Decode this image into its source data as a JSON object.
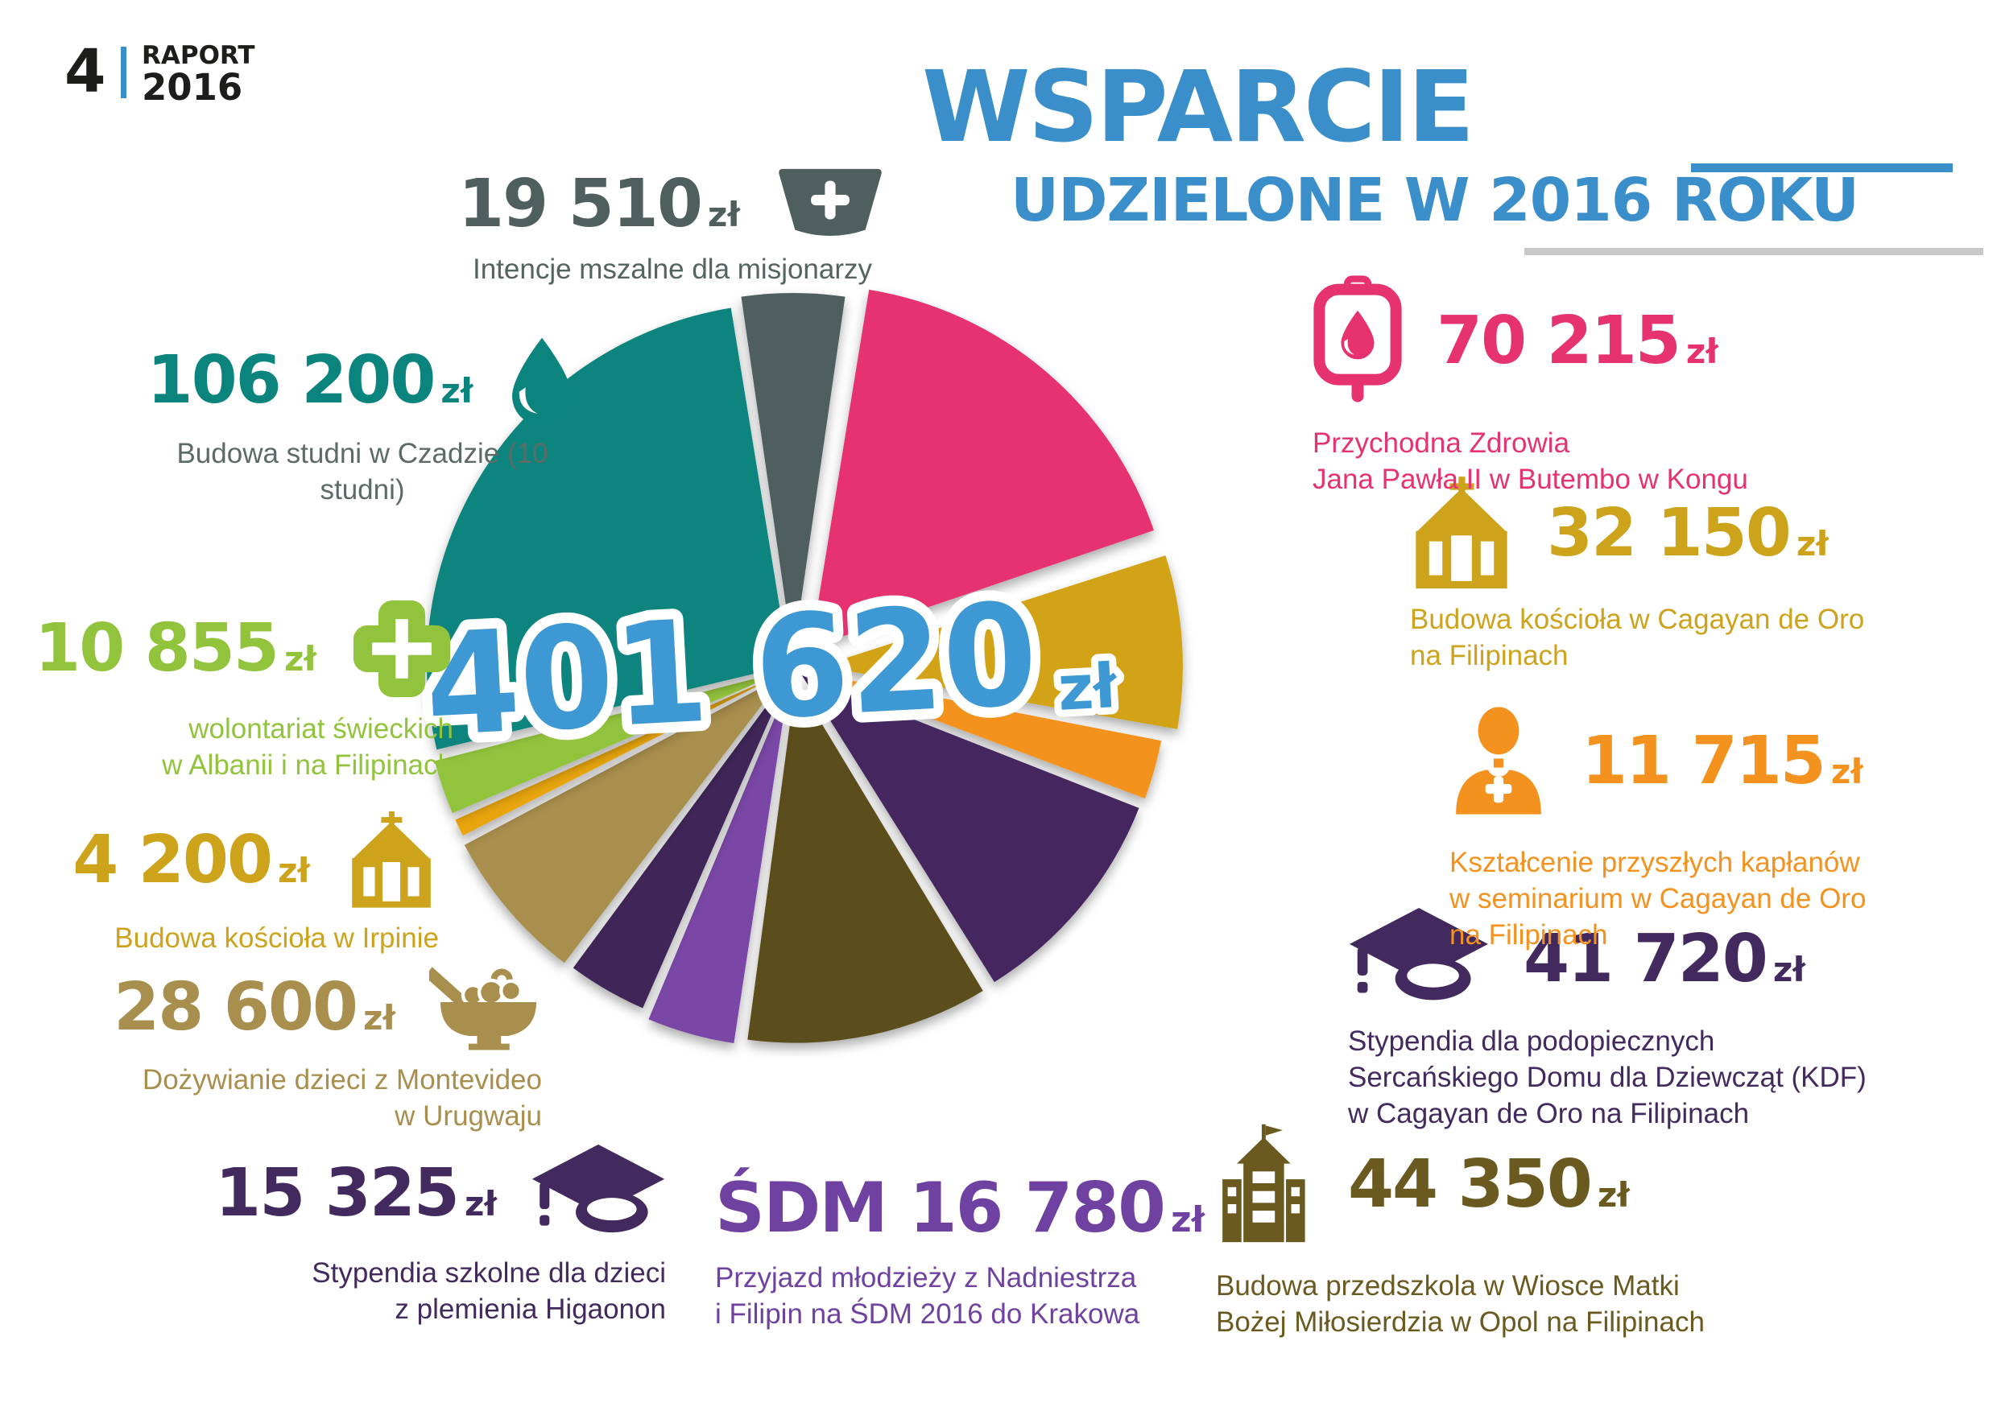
{
  "page": {
    "number": "4",
    "report_label": "RAPORT",
    "report_year": "2016"
  },
  "title": {
    "line1": "WSPARCIE",
    "line2": "UDZIELONE W 2016 ROKU"
  },
  "total": {
    "amount": "401 620",
    "currency": "zł"
  },
  "items": [
    {
      "amount": "19 510",
      "currency": "zł",
      "color": "#4f5f5e",
      "label_color": "#54645f",
      "icon": "chasuble-icon",
      "label_lines": [
        "Intencje mszalne dla misjonarzy"
      ]
    },
    {
      "amount": "106 200",
      "currency": "zł",
      "color": "#0c847e",
      "label_color": "#5d6b68",
      "icon": "water-drop-icon",
      "label_lines": [
        "Budowa studni w Czadzie (10 studni)"
      ]
    },
    {
      "amount": "10 855",
      "currency": "zł",
      "color": "#92c33c",
      "icon": "cross-icon",
      "label_lines": [
        "wolontariat świeckich",
        "w Albanii i na Filipinach"
      ]
    },
    {
      "amount": "4 200",
      "currency": "zł",
      "color": "#cda31c",
      "icon": "church-icon",
      "label_lines": [
        "Budowa kościoła w Irpinie"
      ]
    },
    {
      "amount": "28 600",
      "currency": "zł",
      "color": "#a98f4e",
      "icon": "food-bowl-icon",
      "label_lines": [
        "Dożywianie dzieci z Montevideo",
        "w Urugwaju"
      ]
    },
    {
      "amount": "15 325",
      "currency": "zł",
      "color": "#432a5e",
      "icon": "graduation-cap-icon",
      "label_lines": [
        "Stypendia szkolne dla dzieci",
        "z plemienia Higaonon"
      ]
    },
    {
      "amount": "ŚDM 16 780",
      "currency": "zł",
      "color": "#6f42a1",
      "icon": "none",
      "label_lines": [
        "Przyjazd młodzieży z Nadniestrza",
        "i Filipin na ŚDM 2016 do Krakowa"
      ]
    },
    {
      "amount": "44 350",
      "currency": "zł",
      "color": "#6b5a1f",
      "icon": "school-building-icon",
      "label_lines": [
        "Budowa przedszkola w Wiosce Matki",
        "Bożej Miłosierdzia w Opol na Filipinach"
      ]
    },
    {
      "amount": "41 720",
      "currency": "zł",
      "color": "#432a5e",
      "icon": "graduation-cap-icon",
      "label_lines": [
        "Stypendia dla podopiecznych",
        "Sercańskiego Domu dla Dziewcząt (KDF)",
        "w Cagayan de Oro na Filipinach"
      ]
    },
    {
      "amount": "11 715",
      "currency": "zł",
      "color": "#f3921f",
      "icon": "priest-icon",
      "label_lines": [
        "Kształcenie przyszłych kapłanów",
        "w seminarium w Cagayan de Oro",
        "na Filipinach"
      ]
    },
    {
      "amount": "32 150",
      "currency": "zł",
      "color": "#cda31c",
      "icon": "church-icon",
      "label_lines": [
        "Budowa kościoła w Cagayan de Oro",
        "na Filipinach"
      ]
    },
    {
      "amount": "70 215",
      "currency": "zł",
      "color": "#e6336f",
      "icon": "blood-bag-icon",
      "label_lines": [
        "Przychodna Zdrowia",
        "Jana Pawła II w Butembo w Kongu"
      ]
    }
  ],
  "chart_data": {
    "type": "pie",
    "title": "WSPARCIE UDZIELONE W 2016 ROKU",
    "total_value": 401620,
    "total_label": "401 620 zł",
    "currency": "zł",
    "legend_position": "around-callouts",
    "start": "first slice centered at 12 o'clock, clockwise",
    "slices": [
      {
        "label": "Intencje mszalne dla misjonarzy",
        "value": 19510,
        "color": "#4f5f5e"
      },
      {
        "label": "Przychodna Zdrowia Jana Pawła II w Butembo w Kongu",
        "value": 70215,
        "color": "#e6336f"
      },
      {
        "label": "Budowa kościoła w Cagayan de Oro na Filipinach",
        "value": 32150,
        "color": "#d2a312"
      },
      {
        "label": "Kształcenie przyszłych kapłanów w seminarium w Cagayan de Oro na Filipinach",
        "value": 11715,
        "color": "#f3921f"
      },
      {
        "label": "Stypendia dla podopiecznych Sercańskiego Domu dla Dziewcząt (KDF) w Cagayan de Oro na Filipinach",
        "value": 41720,
        "color": "#44265f"
      },
      {
        "label": "Budowa przedszkola w Wiosce Matki Bożej Miłosierdzia w Opol na Filipinach",
        "value": 44350,
        "color": "#5c4e1e"
      },
      {
        "label": "Przyjazd młodzieży z Nadniestrza i Filipin na ŚDM 2016 do Krakowa",
        "value": 16780,
        "color": "#7a46a6"
      },
      {
        "label": "Stypendia szkolne dla dzieci z plemienia Higaonon",
        "value": 15325,
        "color": "#3f2558"
      },
      {
        "label": "Dożywianie dzieci z Montevideo w Urugwaju",
        "value": 28600,
        "color": "#a98f4e"
      },
      {
        "label": "Budowa kościoła w Irpinie",
        "value": 4200,
        "color": "#e8a50e"
      },
      {
        "label": "wolontariat świeckich w Albanii i na Filipinach",
        "value": 10855,
        "color": "#92c33c"
      },
      {
        "label": "Budowa studni w Czadzie (10 studni)",
        "value": 106200,
        "color": "#0c847e"
      }
    ]
  }
}
